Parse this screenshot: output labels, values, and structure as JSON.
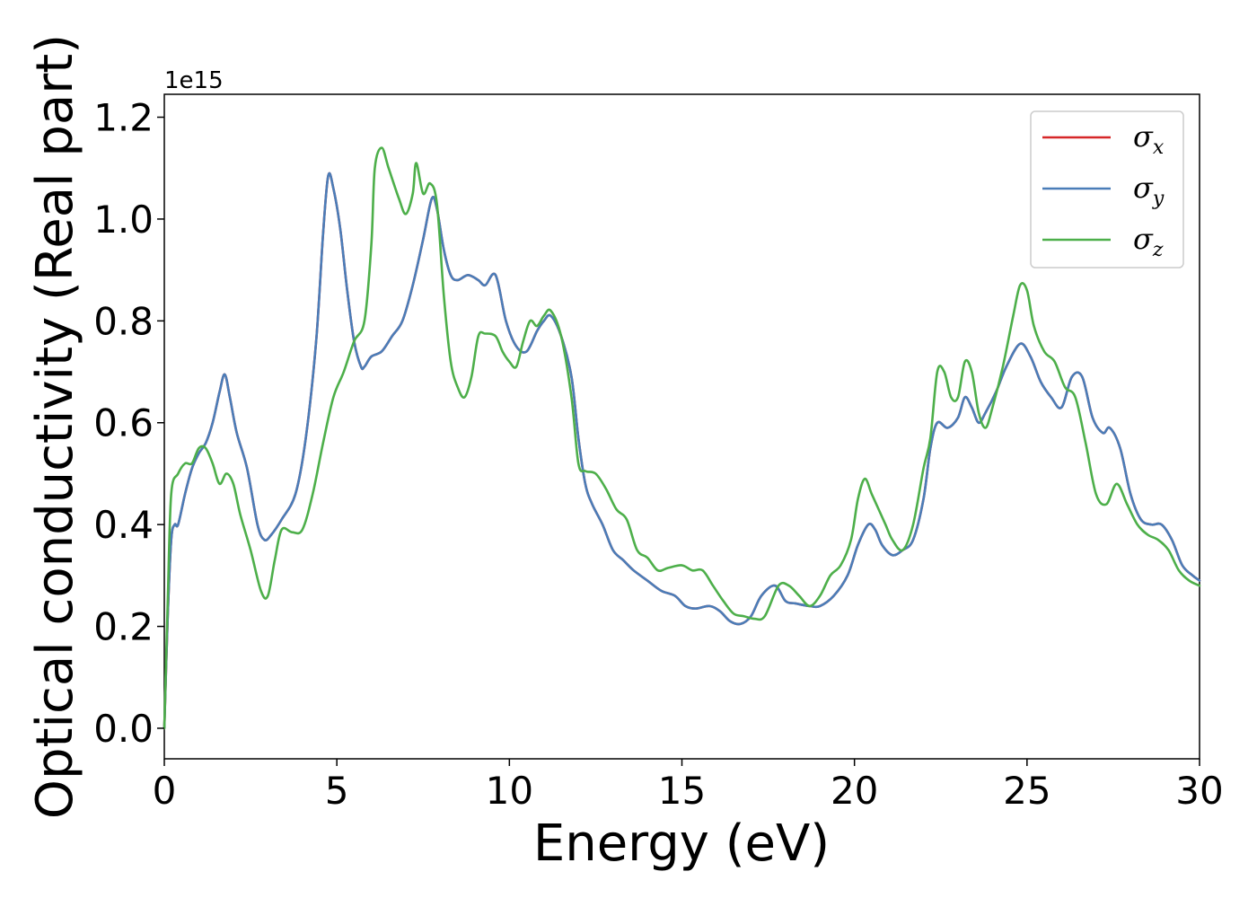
{
  "chart_data": {
    "type": "line",
    "title": "",
    "xlabel": "Energy (eV)",
    "ylabel": "Optical conductivity (Real part)",
    "y_offset_label": "1e15",
    "xlim": [
      0,
      30
    ],
    "ylim": [
      -0.06,
      1.245
    ],
    "xticks": [
      0,
      5,
      10,
      15,
      20,
      25,
      30
    ],
    "xtick_labels": [
      "0",
      "5",
      "10",
      "15",
      "20",
      "25",
      "30"
    ],
    "yticks": [
      0.0,
      0.2,
      0.4,
      0.6,
      0.8,
      1.0,
      1.2
    ],
    "ytick_labels": [
      "0.0",
      "0.2",
      "0.4",
      "0.6",
      "0.8",
      "1.0",
      "1.2"
    ],
    "grid": false,
    "legend": "top-right",
    "legend_entries": [
      {
        "symbol": "σ",
        "sub": "x",
        "color": "#d62728"
      },
      {
        "symbol": "σ",
        "sub": "y",
        "color": "#4a7db8"
      },
      {
        "symbol": "σ",
        "sub": "z",
        "color": "#4daf4a"
      }
    ],
    "series": [
      {
        "color": "#d62728",
        "x": [
          0,
          0.1,
          0.2,
          0.3,
          0.4,
          0.6,
          0.8,
          1.0,
          1.2,
          1.4,
          1.6,
          1.75,
          1.9,
          2.1,
          2.4,
          2.7,
          2.9,
          3.1,
          3.4,
          3.8,
          4.1,
          4.4,
          4.6,
          4.75,
          4.9,
          5.1,
          5.3,
          5.5,
          5.7,
          5.8,
          6.0,
          6.3,
          6.6,
          6.9,
          7.2,
          7.5,
          7.75,
          7.9,
          8.1,
          8.3,
          8.5,
          8.8,
          9.1,
          9.3,
          9.6,
          9.9,
          10.2,
          10.5,
          10.8,
          11.0,
          11.2,
          11.5,
          11.8,
          12.0,
          12.2,
          12.4,
          12.7,
          13.0,
          13.3,
          13.6,
          14.0,
          14.4,
          14.8,
          15.1,
          15.4,
          15.8,
          16.1,
          16.4,
          16.7,
          17.0,
          17.3,
          17.7,
          18.0,
          18.3,
          18.7,
          19.0,
          19.4,
          19.8,
          20.1,
          20.4,
          20.6,
          20.8,
          21.1,
          21.4,
          21.7,
          22.0,
          22.2,
          22.4,
          22.7,
          23.0,
          23.2,
          23.4,
          23.6,
          23.8,
          24.1,
          24.4,
          24.8,
          25.1,
          25.4,
          25.7,
          26.0,
          26.3,
          26.6,
          26.9,
          27.2,
          27.4,
          27.7,
          28.0,
          28.3,
          28.6,
          28.9,
          29.2,
          29.5,
          29.8,
          30
        ],
        "values": [
          0.0,
          0.22,
          0.37,
          0.4,
          0.4,
          0.46,
          0.51,
          0.54,
          0.56,
          0.6,
          0.66,
          0.695,
          0.65,
          0.58,
          0.51,
          0.4,
          0.37,
          0.38,
          0.41,
          0.46,
          0.57,
          0.76,
          0.97,
          1.085,
          1.06,
          0.98,
          0.86,
          0.76,
          0.71,
          0.71,
          0.73,
          0.74,
          0.77,
          0.8,
          0.87,
          0.96,
          1.04,
          1.02,
          0.94,
          0.89,
          0.88,
          0.89,
          0.88,
          0.87,
          0.89,
          0.8,
          0.75,
          0.74,
          0.78,
          0.8,
          0.81,
          0.77,
          0.69,
          0.57,
          0.48,
          0.44,
          0.4,
          0.35,
          0.33,
          0.31,
          0.29,
          0.27,
          0.26,
          0.24,
          0.235,
          0.24,
          0.23,
          0.21,
          0.205,
          0.22,
          0.26,
          0.28,
          0.25,
          0.245,
          0.24,
          0.24,
          0.26,
          0.3,
          0.36,
          0.4,
          0.39,
          0.36,
          0.34,
          0.35,
          0.37,
          0.45,
          0.55,
          0.6,
          0.59,
          0.61,
          0.65,
          0.63,
          0.6,
          0.62,
          0.66,
          0.71,
          0.755,
          0.73,
          0.68,
          0.65,
          0.63,
          0.69,
          0.69,
          0.61,
          0.58,
          0.59,
          0.55,
          0.46,
          0.41,
          0.4,
          0.4,
          0.37,
          0.32,
          0.3,
          0.29
        ]
      },
      {
        "color": "#4a7db8",
        "x": [
          0,
          0.1,
          0.2,
          0.3,
          0.4,
          0.6,
          0.8,
          1.0,
          1.2,
          1.4,
          1.6,
          1.75,
          1.9,
          2.1,
          2.4,
          2.7,
          2.9,
          3.1,
          3.4,
          3.8,
          4.1,
          4.4,
          4.6,
          4.75,
          4.9,
          5.1,
          5.3,
          5.5,
          5.7,
          5.8,
          6.0,
          6.3,
          6.6,
          6.9,
          7.2,
          7.5,
          7.75,
          7.9,
          8.1,
          8.3,
          8.5,
          8.8,
          9.1,
          9.3,
          9.6,
          9.9,
          10.2,
          10.5,
          10.8,
          11.0,
          11.2,
          11.5,
          11.8,
          12.0,
          12.2,
          12.4,
          12.7,
          13.0,
          13.3,
          13.6,
          14.0,
          14.4,
          14.8,
          15.1,
          15.4,
          15.8,
          16.1,
          16.4,
          16.7,
          17.0,
          17.3,
          17.7,
          18.0,
          18.3,
          18.7,
          19.0,
          19.4,
          19.8,
          20.1,
          20.4,
          20.6,
          20.8,
          21.1,
          21.4,
          21.7,
          22.0,
          22.2,
          22.4,
          22.7,
          23.0,
          23.2,
          23.4,
          23.6,
          23.8,
          24.1,
          24.4,
          24.8,
          25.1,
          25.4,
          25.7,
          26.0,
          26.3,
          26.6,
          26.9,
          27.2,
          27.4,
          27.7,
          28.0,
          28.3,
          28.6,
          28.9,
          29.2,
          29.5,
          29.8,
          30
        ],
        "values": [
          0.0,
          0.22,
          0.37,
          0.4,
          0.4,
          0.46,
          0.51,
          0.54,
          0.56,
          0.6,
          0.66,
          0.695,
          0.65,
          0.58,
          0.51,
          0.4,
          0.37,
          0.38,
          0.41,
          0.46,
          0.57,
          0.76,
          0.97,
          1.085,
          1.06,
          0.98,
          0.86,
          0.76,
          0.71,
          0.71,
          0.73,
          0.74,
          0.77,
          0.8,
          0.87,
          0.96,
          1.04,
          1.02,
          0.94,
          0.89,
          0.88,
          0.89,
          0.88,
          0.87,
          0.89,
          0.8,
          0.75,
          0.74,
          0.78,
          0.8,
          0.81,
          0.77,
          0.69,
          0.57,
          0.48,
          0.44,
          0.4,
          0.35,
          0.33,
          0.31,
          0.29,
          0.27,
          0.26,
          0.24,
          0.235,
          0.24,
          0.23,
          0.21,
          0.205,
          0.22,
          0.26,
          0.28,
          0.25,
          0.245,
          0.24,
          0.24,
          0.26,
          0.3,
          0.36,
          0.4,
          0.39,
          0.36,
          0.34,
          0.35,
          0.37,
          0.45,
          0.55,
          0.6,
          0.59,
          0.61,
          0.65,
          0.63,
          0.6,
          0.62,
          0.66,
          0.71,
          0.755,
          0.73,
          0.68,
          0.65,
          0.63,
          0.69,
          0.69,
          0.61,
          0.58,
          0.59,
          0.55,
          0.46,
          0.41,
          0.4,
          0.4,
          0.37,
          0.32,
          0.3,
          0.29
        ]
      },
      {
        "color": "#4daf4a",
        "x": [
          0,
          0.1,
          0.2,
          0.4,
          0.6,
          0.8,
          1.0,
          1.2,
          1.4,
          1.6,
          1.8,
          2.0,
          2.2,
          2.5,
          2.8,
          3.0,
          3.2,
          3.4,
          3.7,
          4.0,
          4.3,
          4.6,
          4.9,
          5.2,
          5.5,
          5.8,
          6.0,
          6.1,
          6.3,
          6.5,
          6.8,
          7.0,
          7.2,
          7.3,
          7.5,
          7.7,
          7.9,
          8.1,
          8.3,
          8.5,
          8.7,
          8.9,
          9.1,
          9.3,
          9.6,
          9.8,
          10.0,
          10.2,
          10.4,
          10.6,
          10.8,
          11.0,
          11.2,
          11.5,
          11.8,
          12.0,
          12.2,
          12.5,
          12.8,
          13.1,
          13.4,
          13.7,
          14.0,
          14.3,
          14.6,
          15.0,
          15.3,
          15.6,
          15.9,
          16.2,
          16.5,
          16.8,
          17.1,
          17.4,
          17.8,
          18.1,
          18.4,
          18.7,
          19.0,
          19.3,
          19.6,
          19.9,
          20.1,
          20.3,
          20.5,
          20.7,
          20.9,
          21.1,
          21.4,
          21.7,
          22.0,
          22.2,
          22.4,
          22.6,
          22.8,
          23.0,
          23.2,
          23.4,
          23.6,
          23.8,
          24.0,
          24.3,
          24.6,
          24.8,
          25.0,
          25.2,
          25.5,
          25.8,
          26.1,
          26.4,
          26.7,
          27.0,
          27.3,
          27.6,
          27.9,
          28.2,
          28.5,
          28.8,
          29.1,
          29.4,
          29.7,
          30
        ],
        "values": [
          0.0,
          0.25,
          0.46,
          0.5,
          0.52,
          0.52,
          0.55,
          0.55,
          0.52,
          0.48,
          0.5,
          0.48,
          0.42,
          0.35,
          0.27,
          0.26,
          0.33,
          0.39,
          0.385,
          0.39,
          0.46,
          0.56,
          0.65,
          0.7,
          0.76,
          0.8,
          0.95,
          1.1,
          1.14,
          1.1,
          1.04,
          1.01,
          1.05,
          1.11,
          1.05,
          1.07,
          1.03,
          0.85,
          0.72,
          0.67,
          0.65,
          0.69,
          0.77,
          0.775,
          0.77,
          0.74,
          0.72,
          0.71,
          0.76,
          0.8,
          0.79,
          0.81,
          0.82,
          0.77,
          0.65,
          0.52,
          0.505,
          0.5,
          0.47,
          0.43,
          0.41,
          0.35,
          0.335,
          0.31,
          0.315,
          0.32,
          0.31,
          0.31,
          0.28,
          0.25,
          0.225,
          0.22,
          0.215,
          0.22,
          0.28,
          0.28,
          0.26,
          0.24,
          0.26,
          0.3,
          0.32,
          0.37,
          0.45,
          0.49,
          0.46,
          0.43,
          0.4,
          0.37,
          0.35,
          0.4,
          0.51,
          0.57,
          0.7,
          0.7,
          0.65,
          0.65,
          0.72,
          0.7,
          0.62,
          0.59,
          0.63,
          0.71,
          0.81,
          0.87,
          0.86,
          0.79,
          0.74,
          0.72,
          0.67,
          0.65,
          0.56,
          0.46,
          0.44,
          0.48,
          0.44,
          0.4,
          0.38,
          0.37,
          0.35,
          0.31,
          0.29,
          0.28
        ]
      }
    ]
  }
}
